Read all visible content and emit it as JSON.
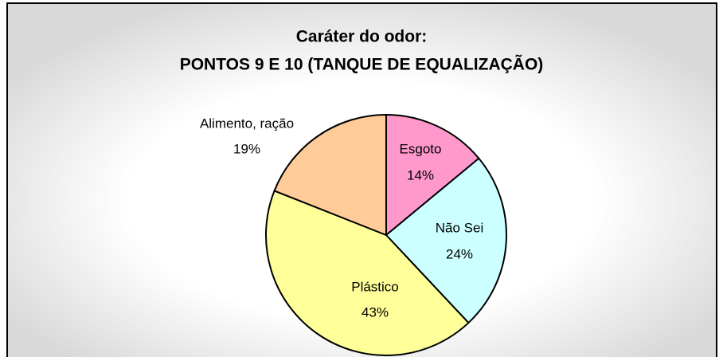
{
  "chart_data": {
    "type": "pie",
    "title": [
      "Caráter do odor:",
      "PONTOS 9 E 10 (TANQUE DE EQUALIZAÇÃO)"
    ],
    "categories": [
      "Esgoto",
      "Não Sei",
      "Plástico",
      "Alimento, ração"
    ],
    "values": [
      14,
      24,
      43,
      19
    ],
    "value_labels": [
      "14%",
      "24%",
      "43%",
      "19%"
    ],
    "colors": [
      "#ff99cc",
      "#ccffff",
      "#ffff99",
      "#ffcc99"
    ]
  }
}
